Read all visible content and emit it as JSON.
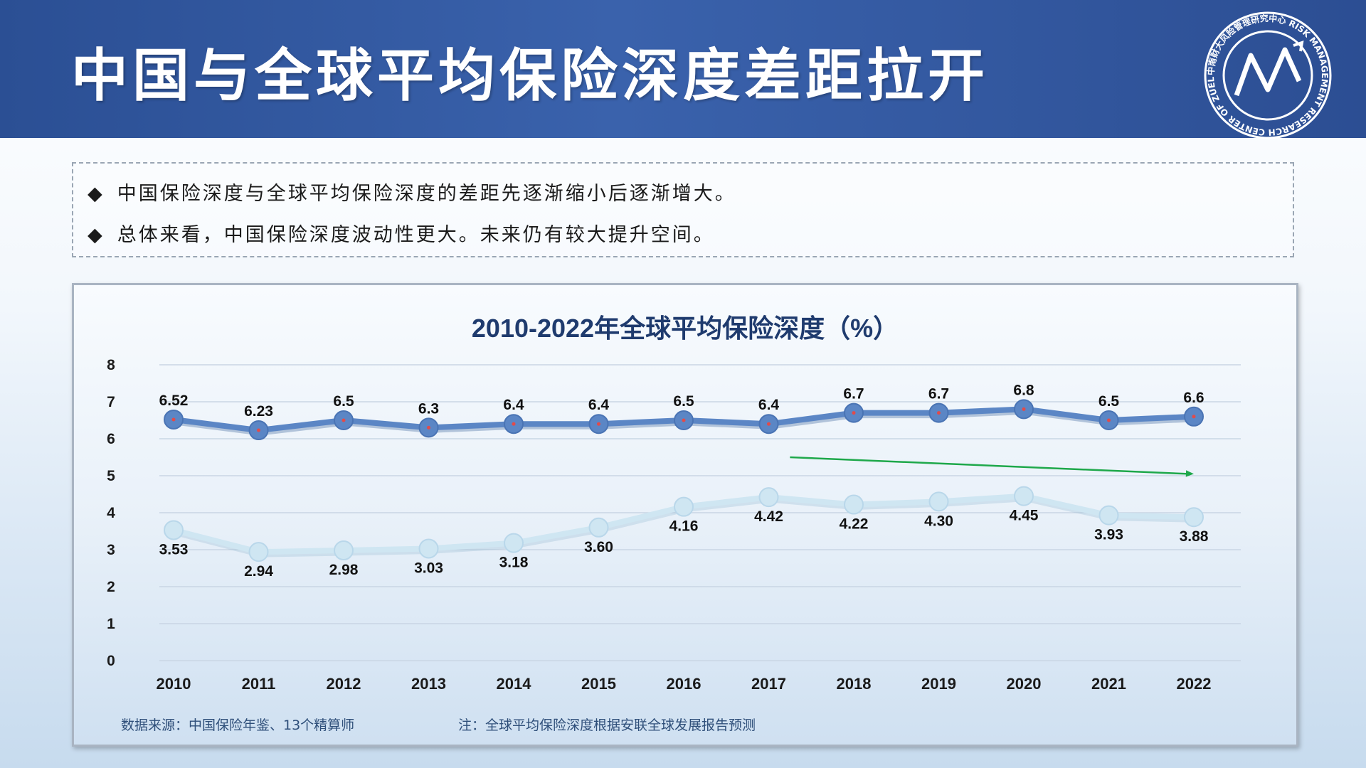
{
  "page": {
    "title": "中国与全球平均保险深度差距拉开",
    "logo_text": "中南财大风险管理研究中心 RISK MANAGEMENT RESEARCH CENTER OF ZUEL"
  },
  "notes": [
    "中国保险深度与全球平均保险深度的差距先逐渐缩小后逐渐增大。",
    "总体来看，中国保险深度波动性更大。未来仍有较大提升空间。"
  ],
  "bullet": "◆",
  "colors": {
    "header": "#2f5398",
    "global_series": "#5b86c5",
    "china_series": "#cfe6f2",
    "trend_arrow": "#1ea84a",
    "axis_text": "#1a1a1a"
  },
  "footnotes": {
    "source": "数据来源：中国保险年鉴、13个精算师",
    "note": "注：全球平均保险深度根据安联全球发展报告预测"
  },
  "chart_data": {
    "type": "line",
    "title": "2010-2022年全球平均保险深度（%）",
    "categories": [
      "2010",
      "2011",
      "2012",
      "2013",
      "2014",
      "2015",
      "2016",
      "2017",
      "2018",
      "2019",
      "2020",
      "2021",
      "2022"
    ],
    "ylim": [
      0,
      8
    ],
    "yticks": [
      0,
      1,
      2,
      3,
      4,
      5,
      6,
      7,
      8
    ],
    "grid": true,
    "series": [
      {
        "name": "全球平均保险深度",
        "values": [
          6.52,
          6.23,
          6.5,
          6.3,
          6.4,
          6.4,
          6.5,
          6.4,
          6.7,
          6.7,
          6.8,
          6.5,
          6.6
        ],
        "labels": [
          "6.52",
          "6.23",
          "6.5",
          "6.3",
          "6.4",
          "6.4",
          "6.5",
          "6.4",
          "6.7",
          "6.7",
          "6.8",
          "6.5",
          "6.6"
        ]
      },
      {
        "name": "中国保险深度",
        "values": [
          3.53,
          2.94,
          2.98,
          3.03,
          3.18,
          3.6,
          4.16,
          4.42,
          4.22,
          4.3,
          4.45,
          3.93,
          3.88
        ],
        "labels": [
          "3.53",
          "2.94",
          "2.98",
          "3.03",
          "3.18",
          "3.60",
          "4.16",
          "4.42",
          "4.22",
          "4.30",
          "4.45",
          "3.93",
          "3.88"
        ]
      }
    ],
    "annotations": [
      {
        "type": "arrow",
        "from": {
          "x_index": 7.25,
          "y": 5.5
        },
        "to": {
          "x_index": 12.0,
          "y": 5.05
        }
      }
    ]
  }
}
